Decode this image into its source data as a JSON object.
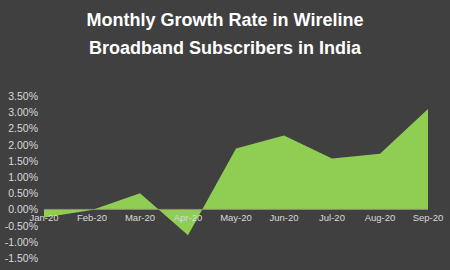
{
  "chart_data": {
    "type": "area",
    "title": "Monthly Growth Rate in Wireline Broadband Subscribers in India",
    "categories": [
      "Jan-20",
      "Feb-20",
      "Mar-20",
      "Apr-20",
      "May-20",
      "Jun-20",
      "Jul-20",
      "Aug-20",
      "Sep-20"
    ],
    "values": [
      -0.25,
      -0.02,
      0.5,
      -0.8,
      1.88,
      2.28,
      1.57,
      1.72,
      3.1
    ],
    "color": "#8fce52",
    "ylim": [
      -1.5,
      3.5
    ],
    "yticks": [
      {
        "value": -1.5,
        "label": "-1.50%"
      },
      {
        "value": -1.0,
        "label": "-1.00%"
      },
      {
        "value": -0.5,
        "label": "-0.50%"
      },
      {
        "value": 0,
        "label": "0.00%"
      },
      {
        "value": 0.5,
        "label": "0.50%"
      },
      {
        "value": 1.0,
        "label": "1.00%"
      },
      {
        "value": 1.5,
        "label": "1.50%"
      },
      {
        "value": 2.0,
        "label": "2.00%"
      },
      {
        "value": 2.5,
        "label": "2.50%"
      },
      {
        "value": 3.0,
        "label": "3.00%"
      },
      {
        "value": 3.5,
        "label": "3.50%"
      }
    ],
    "grid": false
  }
}
